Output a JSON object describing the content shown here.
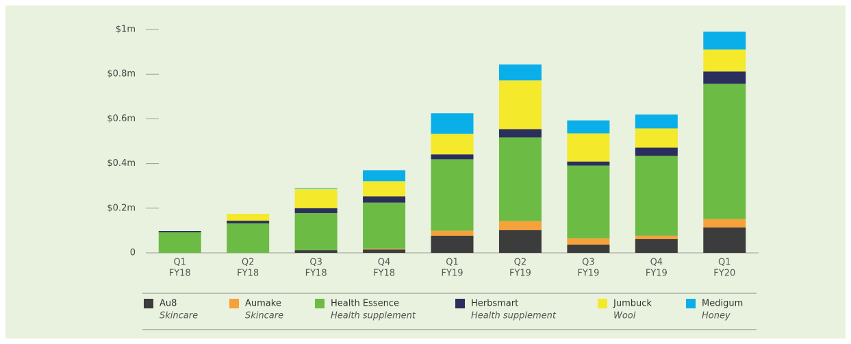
{
  "chart_data": {
    "type": "stacked_bar",
    "categories": [
      [
        "Q1",
        "FY18"
      ],
      [
        "Q2",
        "FY18"
      ],
      [
        "Q3",
        "FY18"
      ],
      [
        "Q4",
        "FY18"
      ],
      [
        "Q1",
        "FY19"
      ],
      [
        "Q2",
        "FY19"
      ],
      [
        "Q3",
        "FY19"
      ],
      [
        "Q4",
        "FY19"
      ],
      [
        "Q1",
        "FY20"
      ]
    ],
    "series": [
      {
        "name": "Au8",
        "sector": "Skincare",
        "color": "#3c3c3c",
        "values": [
          0,
          0,
          0.012,
          0.015,
          0.077,
          0.102,
          0.037,
          0.062,
          0.114
        ]
      },
      {
        "name": "Aumake",
        "sector": "Skincare",
        "color": "#f7a13a",
        "values": [
          0,
          0,
          0,
          0.004,
          0.022,
          0.04,
          0.028,
          0.015,
          0.037
        ]
      },
      {
        "name": "Health Essence",
        "sector": "Health supplement",
        "color": "#6cbb45",
        "values": [
          0.092,
          0.132,
          0.166,
          0.206,
          0.32,
          0.375,
          0.326,
          0.357,
          0.606
        ]
      },
      {
        "name": "Herbsmart",
        "sector": "Health supplement",
        "color": "#2b2f5e",
        "values": [
          0.006,
          0.012,
          0.022,
          0.028,
          0.022,
          0.037,
          0.018,
          0.037,
          0.055
        ]
      },
      {
        "name": "Jumbuck",
        "sector": "Wool",
        "color": "#f4e92b",
        "values": [
          0,
          0.031,
          0.086,
          0.068,
          0.092,
          0.218,
          0.126,
          0.086,
          0.098
        ]
      },
      {
        "name": "Medigum",
        "sector": "Honey",
        "color": "#0aafea",
        "values": [
          0,
          0,
          0.003,
          0.049,
          0.092,
          0.071,
          0.058,
          0.062,
          0.08
        ]
      }
    ],
    "ylim": [
      0,
      1
    ],
    "yticks": [
      0,
      {
        "value": 0.2,
        "label": "$0.2m"
      },
      {
        "value": 0.4,
        "label": "$0.4m"
      },
      {
        "value": 0.6,
        "label": "$0.6m"
      },
      {
        "value": 0.8,
        "label": "$0.8m"
      },
      {
        "value": 1,
        "label": "$1m"
      }
    ],
    "legend": "bottom"
  }
}
